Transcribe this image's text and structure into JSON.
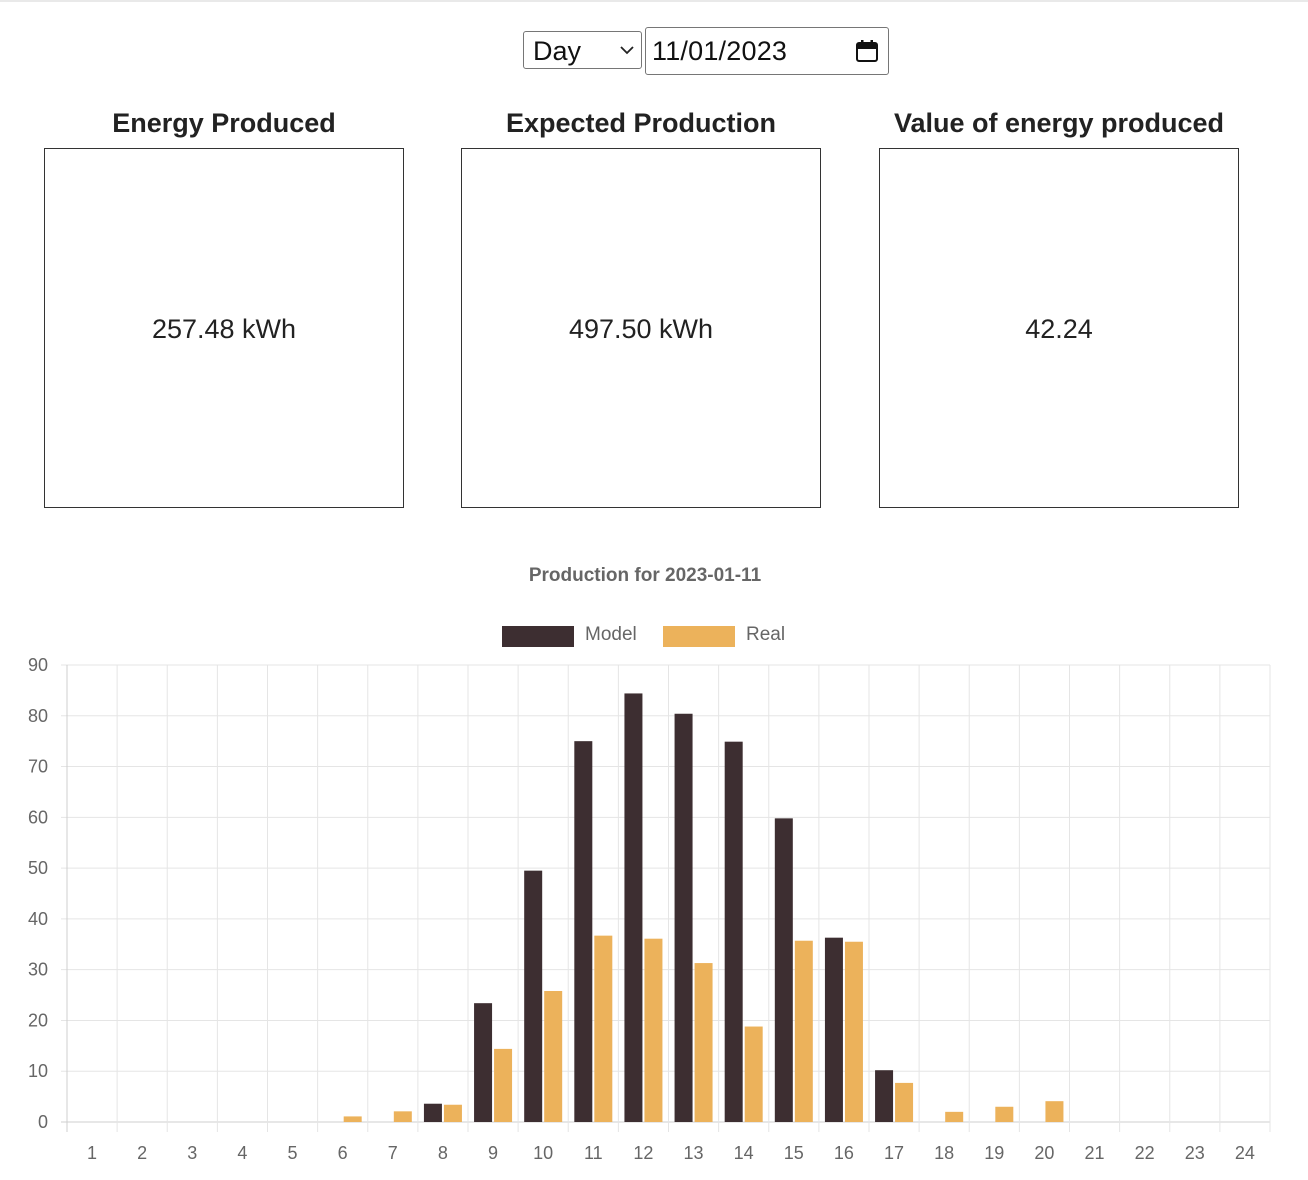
{
  "controls": {
    "period_selected": "Day",
    "date_value": "11/01/2023"
  },
  "cards": [
    {
      "title": "Energy Produced",
      "value": "257.48 kWh"
    },
    {
      "title": "Expected Production",
      "value": "497.50 kWh"
    },
    {
      "title": "Value of energy produced",
      "value": "42.24"
    }
  ],
  "colors": {
    "model": "#3d2e31",
    "real": "#ecb25b",
    "grid": "#e5e5e5",
    "axis_text": "#666666"
  },
  "chart_data": {
    "type": "bar",
    "title": "Production for 2023-01-11",
    "categories": [
      "1",
      "2",
      "3",
      "4",
      "5",
      "6",
      "7",
      "8",
      "9",
      "10",
      "11",
      "12",
      "13",
      "14",
      "15",
      "16",
      "17",
      "18",
      "19",
      "20",
      "21",
      "22",
      "23",
      "24"
    ],
    "series": [
      {
        "name": "Model",
        "values": [
          0,
          0,
          0,
          0,
          0,
          0,
          0,
          3.6,
          23.4,
          49.5,
          75,
          84.4,
          80.4,
          74.9,
          59.8,
          36.3,
          10.2,
          0,
          0,
          0,
          0,
          0,
          0,
          0
        ]
      },
      {
        "name": "Real",
        "values": [
          0,
          0,
          0,
          0,
          0,
          1.1,
          2.1,
          3.4,
          14.4,
          25.8,
          36.7,
          36.1,
          31.3,
          18.8,
          35.7,
          35.5,
          7.7,
          2.0,
          3.0,
          4.1,
          0,
          0,
          0,
          0
        ]
      }
    ],
    "ylim": [
      0,
      90
    ],
    "yticks": [
      0,
      10,
      20,
      30,
      40,
      50,
      60,
      70,
      80,
      90
    ],
    "legend": "top-center",
    "grid": true
  }
}
